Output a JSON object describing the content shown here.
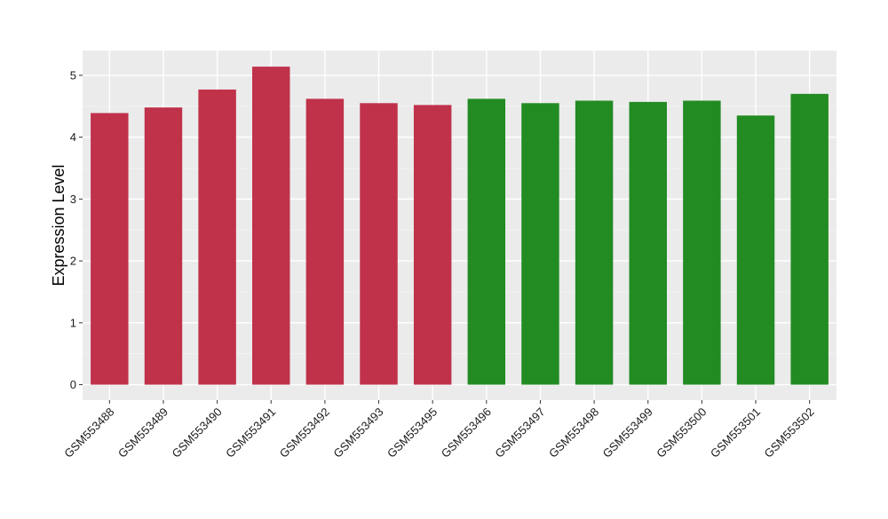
{
  "chart_data": {
    "type": "bar",
    "title": "",
    "xlabel": "",
    "ylabel": "Expression Level",
    "ylim": [
      -0.25,
      5.4
    ],
    "yticks": [
      0,
      1,
      2,
      3,
      4,
      5
    ],
    "grid": true,
    "legend": "none",
    "categories": [
      "GSM553488",
      "GSM553489",
      "GSM553490",
      "GSM553491",
      "GSM553492",
      "GSM553493",
      "GSM553495",
      "GSM553496",
      "GSM553497",
      "GSM553498",
      "GSM553499",
      "GSM553500",
      "GSM553501",
      "GSM553502"
    ],
    "values": [
      4.39,
      4.48,
      4.77,
      5.14,
      4.62,
      4.55,
      4.52,
      4.62,
      4.55,
      4.59,
      4.57,
      4.59,
      4.35,
      4.7
    ],
    "bar_colors": [
      "#C0314A",
      "#C0314A",
      "#C0314A",
      "#C0314A",
      "#C0314A",
      "#C0314A",
      "#C0314A",
      "#228B22",
      "#228B22",
      "#228B22",
      "#228B22",
      "#228B22",
      "#228B22",
      "#228B22"
    ]
  },
  "colors": {
    "panel_background": "#EBEBEB",
    "grid_major": "#FFFFFF",
    "grid_minor": "#F5F5F5",
    "tick_mark": "#333333"
  }
}
